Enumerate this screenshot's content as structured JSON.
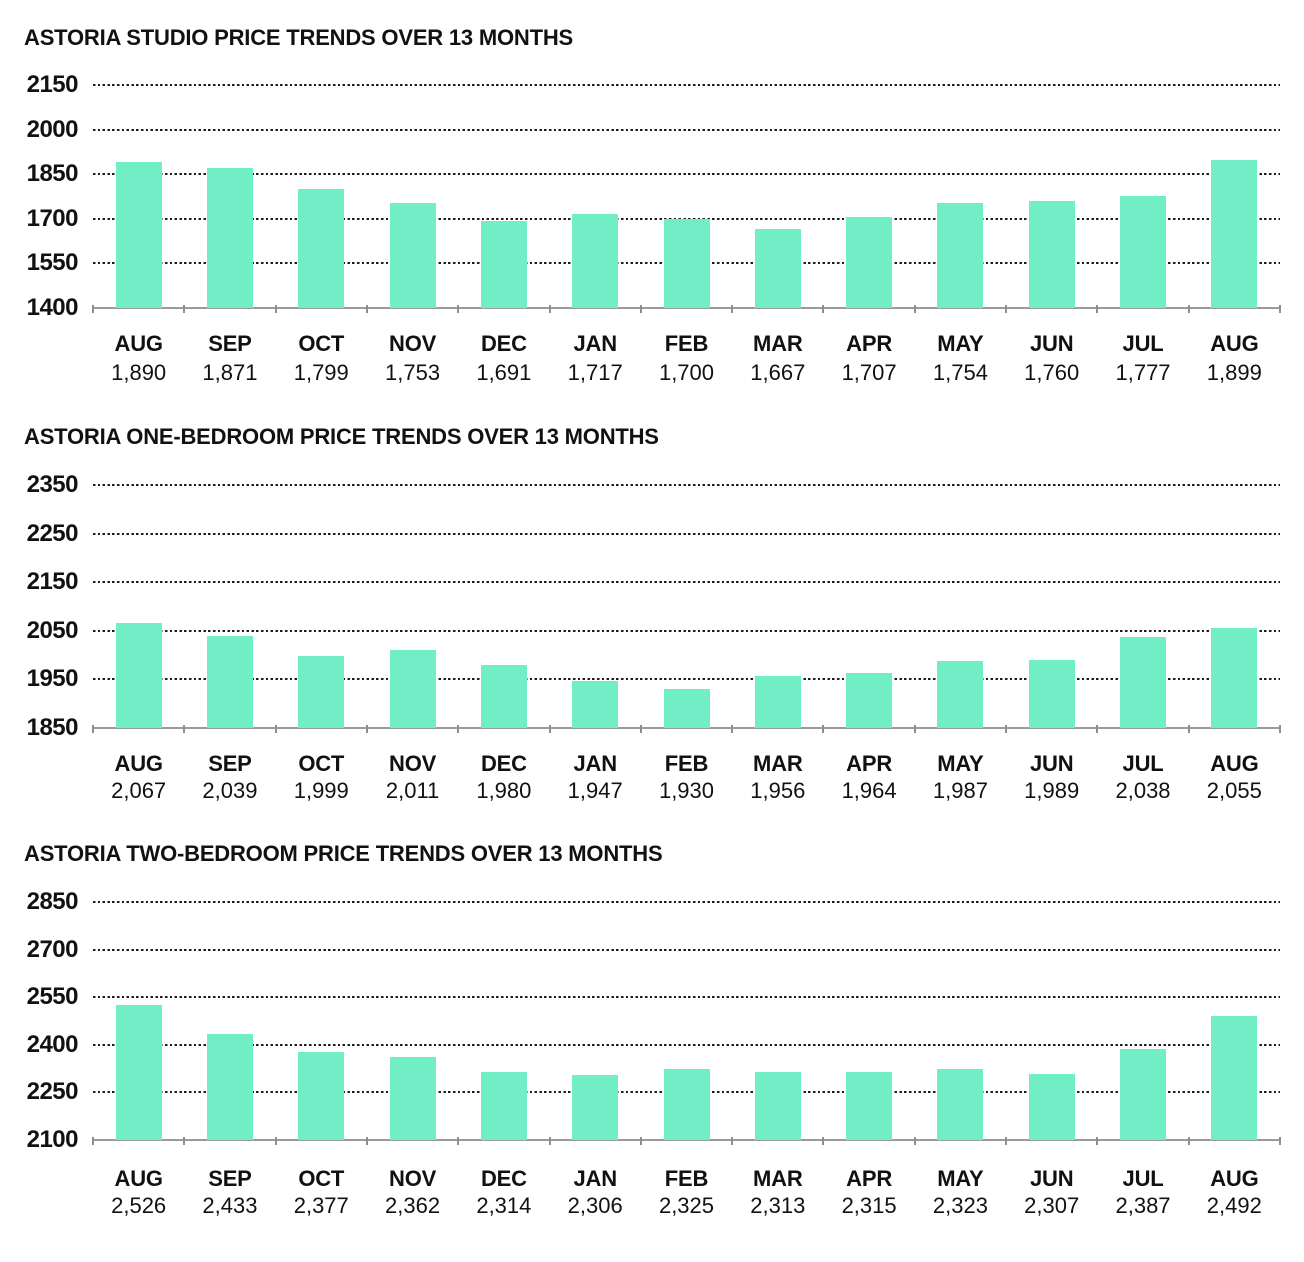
{
  "bar_color": "#71EEC5",
  "text_color": "#111111",
  "chart_data": [
    {
      "type": "bar",
      "title": "ASTORIA STUDIO PRICE TRENDS OVER 13 MONTHS",
      "categories": [
        "AUG",
        "SEP",
        "OCT",
        "NOV",
        "DEC",
        "JAN",
        "FEB",
        "MAR",
        "APR",
        "MAY",
        "JUN",
        "JUL",
        "AUG"
      ],
      "values": [
        1890,
        1871,
        1799,
        1753,
        1691,
        1717,
        1700,
        1667,
        1707,
        1754,
        1760,
        1777,
        1899
      ],
      "value_labels": [
        "1,890",
        "1,871",
        "1,799",
        "1,753",
        "1,691",
        "1,717",
        "1,700",
        "1,667",
        "1,707",
        "1,754",
        "1,760",
        "1,777",
        "1,899"
      ],
      "yticks": [
        2150,
        2000,
        1850,
        1700,
        1550,
        1400
      ],
      "ylim": [
        1400,
        2150
      ],
      "xlabel": "",
      "ylabel": "",
      "grid": "dotted-horizontal",
      "legend": "none"
    },
    {
      "type": "bar",
      "title": "ASTORIA ONE-BEDROOM PRICE TRENDS OVER 13 MONTHS",
      "categories": [
        "AUG",
        "SEP",
        "OCT",
        "NOV",
        "DEC",
        "JAN",
        "FEB",
        "MAR",
        "APR",
        "MAY",
        "JUN",
        "JUL",
        "AUG"
      ],
      "values": [
        2067,
        2039,
        1999,
        2011,
        1980,
        1947,
        1930,
        1956,
        1964,
        1987,
        1989,
        2038,
        2055
      ],
      "value_labels": [
        "2,067",
        "2,039",
        "1,999",
        "2,011",
        "1,980",
        "1,947",
        "1,930",
        "1,956",
        "1,964",
        "1,987",
        "1,989",
        "2,038",
        "2,055"
      ],
      "yticks": [
        2350,
        2250,
        2150,
        2050,
        1950,
        1850
      ],
      "ylim": [
        1850,
        2350
      ],
      "xlabel": "",
      "ylabel": "",
      "grid": "dotted-horizontal",
      "legend": "none"
    },
    {
      "type": "bar",
      "title": "ASTORIA TWO-BEDROOM PRICE TRENDS OVER 13 MONTHS",
      "categories": [
        "AUG",
        "SEP",
        "OCT",
        "NOV",
        "DEC",
        "JAN",
        "FEB",
        "MAR",
        "APR",
        "MAY",
        "JUN",
        "JUL",
        "AUG"
      ],
      "values": [
        2526,
        2433,
        2377,
        2362,
        2314,
        2306,
        2325,
        2313,
        2315,
        2323,
        2307,
        2387,
        2492
      ],
      "value_labels": [
        "2,526",
        "2,433",
        "2,377",
        "2,362",
        "2,314",
        "2,306",
        "2,325",
        "2,313",
        "2,315",
        "2,323",
        "2,307",
        "2,387",
        "2,492"
      ],
      "yticks": [
        2850,
        2700,
        2550,
        2400,
        2250,
        2100
      ],
      "ylim": [
        2100,
        2850
      ],
      "xlabel": "",
      "ylabel": "",
      "grid": "dotted-horizontal",
      "legend": "none"
    }
  ]
}
